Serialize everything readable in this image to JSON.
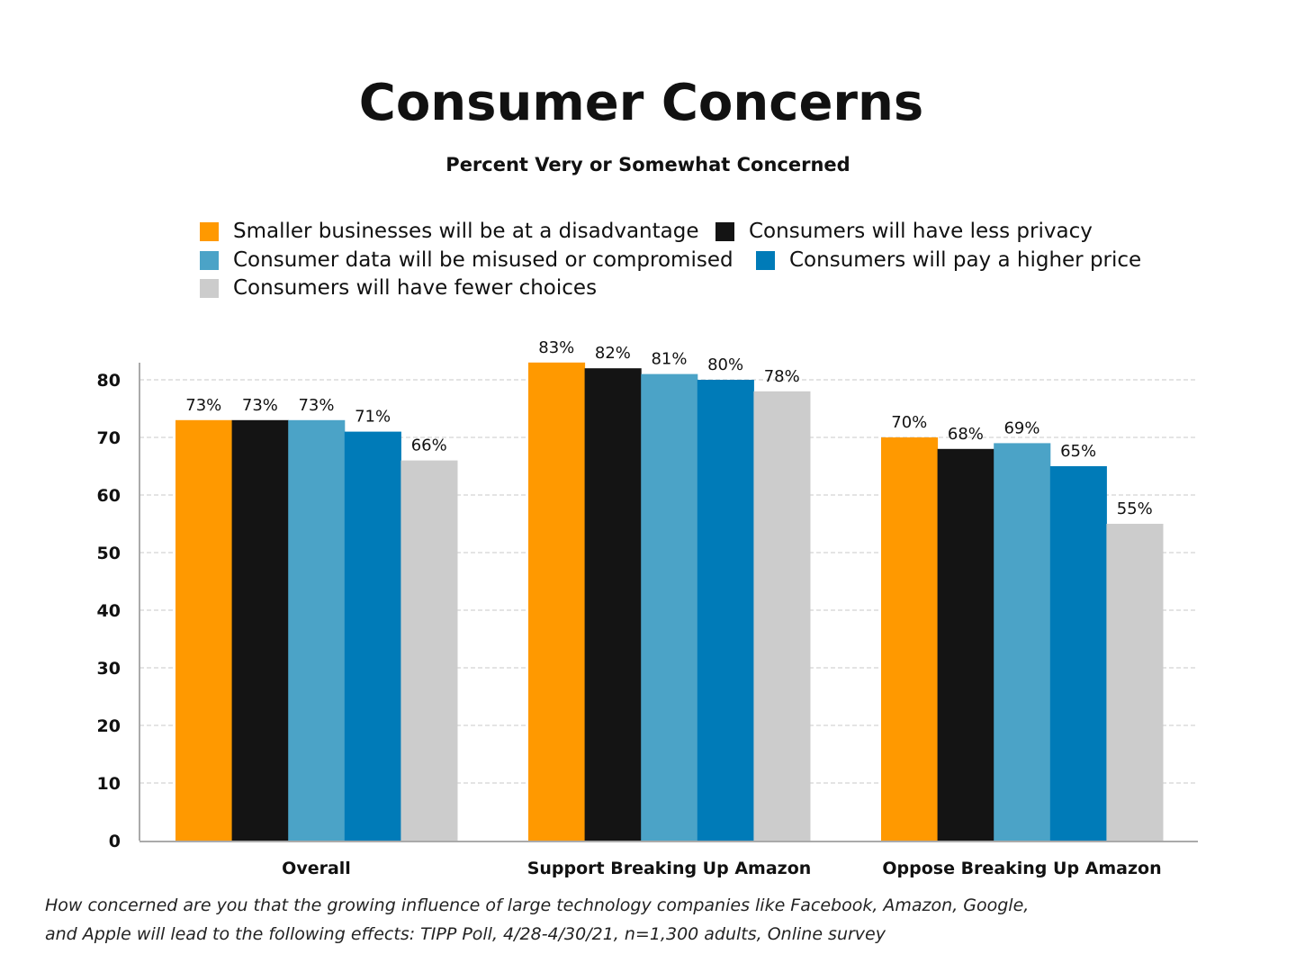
{
  "chart_data": {
    "type": "bar",
    "title": "Consumer Concerns",
    "subtitle": "Percent Very or Somewhat Concerned",
    "categories": [
      "Overall",
      "Support Breaking Up Amazon",
      "Oppose Breaking Up Amazon"
    ],
    "series": [
      {
        "name": "Smaller businesses will be at a disadvantage",
        "color": "#FF9900",
        "values": [
          73,
          83,
          70
        ]
      },
      {
        "name": "Consumers will have less privacy",
        "color": "#141414",
        "values": [
          73,
          82,
          68
        ]
      },
      {
        "name": "Consumer data will be misused or compromised",
        "color": "#4BA3C7",
        "values": [
          73,
          81,
          69
        ]
      },
      {
        "name": "Consumers will pay a higher price",
        "color": "#007BB8",
        "values": [
          71,
          80,
          65
        ]
      },
      {
        "name": "Consumers will have fewer choices",
        "color": "#CCCCCC",
        "values": [
          66,
          78,
          55
        ]
      }
    ],
    "data_label_suffix": "%",
    "yticks": [
      0,
      10,
      20,
      30,
      40,
      50,
      60,
      70,
      80
    ],
    "ylim": [
      0,
      83
    ],
    "xlabel": "",
    "ylabel": "",
    "grid": true,
    "legend_position": "top",
    "caption_lines": [
      "How concerned are you that the growing influence of large technology companies like Facebook, Amazon, Google,",
      "and Apple will lead to the following effects: TIPP Poll, 4/28-4/30/21, n=1,300 adults, Online survey"
    ]
  }
}
